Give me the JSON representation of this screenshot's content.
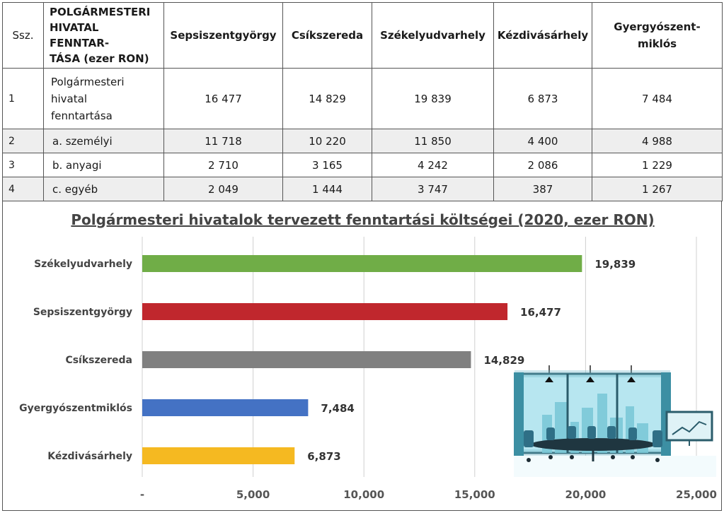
{
  "table": {
    "headers": [
      "Ssz.",
      "POLGÁRMESTERI HIVATAL FENNTAR-TÁSA (ezer RON)",
      "Sepsiszentgyörgy",
      "Csíkszereda",
      "Székelyudvarhely",
      "Kézdivásárhely",
      "Gyergyószent-miklós"
    ],
    "header_lines": {
      "name": [
        "POLGÁRMESTERI",
        "HIVATAL FENNTAR-",
        "TÁSA (ezer RON)"
      ],
      "last": [
        "Gyergyószent-",
        "miklós"
      ]
    },
    "rows": [
      {
        "ssz": "1",
        "name_lines": [
          "Polgármesteri",
          "hivatal",
          "fenntartása"
        ],
        "values": [
          "16 477",
          "14 829",
          "19 839",
          "6 873",
          "7 484"
        ]
      },
      {
        "ssz": "2",
        "name": "a. személyi",
        "values": [
          "11 718",
          "10 220",
          "11 850",
          "4 400",
          "4 988"
        ]
      },
      {
        "ssz": "3",
        "name": "b. anyagi",
        "values": [
          "2 710",
          "3 165",
          "4 242",
          "2 086",
          "1 229"
        ]
      },
      {
        "ssz": "4",
        "name": "c. egyéb",
        "values": [
          "2 049",
          "1 444",
          "3 747",
          "387",
          "1 267"
        ]
      }
    ]
  },
  "chart_data": {
    "type": "bar",
    "orientation": "horizontal",
    "title": "Polgármesteri hivatalok tervezett fenntartási költségei (2020, ezer RON)",
    "categories": [
      "Székelyudvarhely",
      "Sepsiszentgyörgy",
      "Csíkszereda",
      "Gyergyószentmiklós",
      "Kézdivásárhely"
    ],
    "values": [
      19839,
      16477,
      14829,
      7484,
      6873
    ],
    "value_labels": [
      "19,839",
      "16,477",
      "14,829",
      "7,484",
      "6,873"
    ],
    "colors": [
      "#70ad47",
      "#c0272d",
      "#808080",
      "#4472c4",
      "#f5b921"
    ],
    "xlim": [
      0,
      25000
    ],
    "xticks": [
      0,
      5000,
      10000,
      15000,
      20000,
      25000
    ],
    "xtick_labels": [
      "-",
      "5,000",
      "10,000",
      "15,000",
      "20,000",
      "25,000"
    ],
    "grid": "vertical",
    "decoration_icon": "meeting-room-illustration"
  }
}
